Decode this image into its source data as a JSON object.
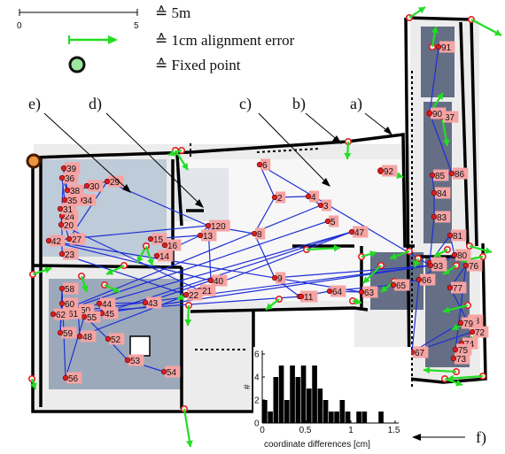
{
  "legend": {
    "scale_text": "≙ 5m",
    "scale_tick_left": "0",
    "scale_tick_right": "5",
    "arrow_text": "≙ 1cm alignment error",
    "fixed_text": "≙ Fixed point"
  },
  "callouts": [
    "a)",
    "b)",
    "c)",
    "d)",
    "e)",
    "f)"
  ],
  "node_labels": [
    "1",
    "2",
    "3",
    "4",
    "5",
    "6",
    "8",
    "9",
    "11",
    "13",
    "14",
    "15",
    "16",
    "20",
    "21",
    "22",
    "23",
    "24",
    "27",
    "29",
    "30",
    "31",
    "34",
    "35",
    "36",
    "37",
    "38",
    "39",
    "40",
    "42",
    "43",
    "44",
    "45",
    "47",
    "48",
    "50",
    "52",
    "53",
    "54",
    "55",
    "56",
    "58",
    "59",
    "60",
    "61",
    "62",
    "63",
    "64",
    "65",
    "66",
    "67",
    "72",
    "73",
    "74",
    "75",
    "76",
    "77",
    "78",
    "79",
    "80",
    "81",
    "82",
    "83",
    "84",
    "85",
    "86",
    "90",
    "91",
    "92",
    "93",
    "120"
  ],
  "colors": {
    "wall": "#000000",
    "blue_room": "#b9c8d6",
    "dark_room": "#56617a",
    "graph_edge": "#1f2fd6",
    "arrow": "#22dd22",
    "node_label_bg": "#f6a3a3",
    "node_fill": "#d92020",
    "fixed_point": "#7a2a00"
  },
  "chart_data": {
    "type": "bar",
    "title": "",
    "xlabel": "coordinate differences [cm]",
    "ylabel": "#",
    "xlim": [
      0,
      1.5
    ],
    "ylim": [
      0,
      6
    ],
    "x_ticks": [
      "0",
      "0.5",
      "1",
      "1.5"
    ],
    "y_ticks": [
      "0",
      "2",
      "4",
      "6"
    ],
    "values": [
      2,
      1,
      4,
      5,
      2,
      5,
      4,
      5,
      3,
      5,
      3,
      2,
      1,
      1,
      2,
      1,
      0,
      1,
      1,
      0,
      0,
      1,
      0,
      0
    ]
  }
}
